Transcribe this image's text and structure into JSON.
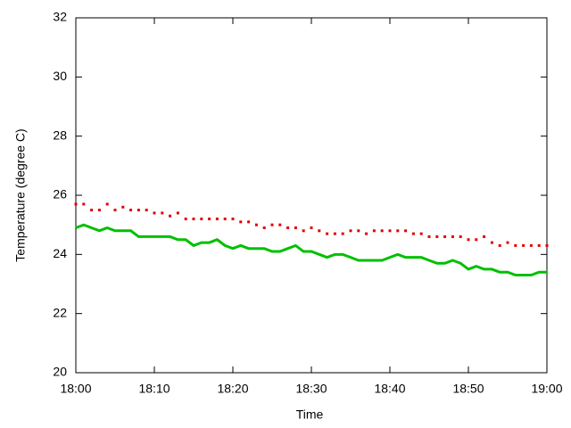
{
  "chart_data": {
    "type": "line",
    "xlabel": "Time",
    "ylabel": "Temperature (degree C)",
    "x": [
      1080,
      1081,
      1082,
      1083,
      1084,
      1085,
      1086,
      1087,
      1088,
      1089,
      1090,
      1091,
      1092,
      1093,
      1094,
      1095,
      1096,
      1097,
      1098,
      1099,
      1100,
      1101,
      1102,
      1103,
      1104,
      1105,
      1106,
      1107,
      1108,
      1109,
      1110,
      1111,
      1112,
      1113,
      1114,
      1115,
      1116,
      1117,
      1118,
      1119,
      1120,
      1121,
      1122,
      1123,
      1124,
      1125,
      1126,
      1127,
      1128,
      1129,
      1130,
      1131,
      1132,
      1133,
      1134,
      1135,
      1136,
      1137,
      1138,
      1139,
      1140
    ],
    "series": [
      {
        "color": "#e00000",
        "style": "points",
        "values": [
          25.7,
          25.7,
          25.5,
          25.5,
          25.7,
          25.5,
          25.6,
          25.5,
          25.5,
          25.5,
          25.4,
          25.4,
          25.3,
          25.4,
          25.2,
          25.2,
          25.2,
          25.2,
          25.2,
          25.2,
          25.2,
          25.1,
          25.1,
          25.0,
          24.9,
          25.0,
          25.0,
          24.9,
          24.9,
          24.8,
          24.9,
          24.8,
          24.7,
          24.7,
          24.7,
          24.8,
          24.8,
          24.7,
          24.8,
          24.8,
          24.8,
          24.8,
          24.8,
          24.7,
          24.7,
          24.6,
          24.6,
          24.6,
          24.6,
          24.6,
          24.5,
          24.5,
          24.6,
          24.4,
          24.3,
          24.4,
          24.3,
          24.3,
          24.3,
          24.3,
          24.3
        ]
      },
      {
        "color": "#00c000",
        "style": "lines",
        "values": [
          24.9,
          25.0,
          24.9,
          24.8,
          24.9,
          24.8,
          24.8,
          24.8,
          24.6,
          24.6,
          24.6,
          24.6,
          24.6,
          24.5,
          24.5,
          24.3,
          24.4,
          24.4,
          24.5,
          24.3,
          24.2,
          24.3,
          24.2,
          24.2,
          24.2,
          24.1,
          24.1,
          24.2,
          24.3,
          24.1,
          24.1,
          24.0,
          23.9,
          24.0,
          24.0,
          23.9,
          23.8,
          23.8,
          23.8,
          23.8,
          23.9,
          24.0,
          23.9,
          23.9,
          23.9,
          23.8,
          23.7,
          23.7,
          23.8,
          23.7,
          23.5,
          23.6,
          23.5,
          23.5,
          23.4,
          23.4,
          23.3,
          23.3,
          23.3,
          23.4,
          23.4
        ]
      }
    ],
    "xlim": [
      1080,
      1140
    ],
    "xticks": [
      {
        "value": 1080,
        "label": "18:00"
      },
      {
        "value": 1090,
        "label": "18:10"
      },
      {
        "value": 1100,
        "label": "18:20"
      },
      {
        "value": 1110,
        "label": "18:30"
      },
      {
        "value": 1120,
        "label": "18:40"
      },
      {
        "value": 1130,
        "label": "18:50"
      },
      {
        "value": 1140,
        "label": "19:00"
      }
    ],
    "ylim": [
      20,
      32
    ],
    "yticks": [
      20,
      22,
      24,
      26,
      28,
      30,
      32
    ]
  }
}
